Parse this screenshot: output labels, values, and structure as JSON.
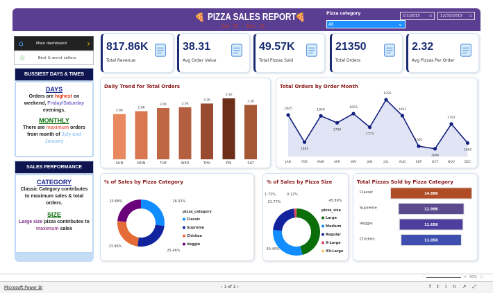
{
  "header": {
    "title": "PIZZA SALES REPORT",
    "subtitle": "Jan 15 - Dec 15",
    "filter_label": "Pizza category",
    "filter_value": "All",
    "date_from": "1/1/2015",
    "date_to": "12/31/2015"
  },
  "nav": {
    "main": "Main dashboard",
    "best": "Best & worst sellers"
  },
  "panel1": {
    "title": "BUSSIEST DAYS & TIMES",
    "days_h": "DAYS",
    "days_1": "Orders are ",
    "days_hl": "highest",
    "days_2": " on weekend, ",
    "days_hl2": "Friday/Saturday",
    "days_3": " evenings.",
    "month_h": "MONTHLY",
    "month_1": "There are ",
    "month_hl": "maximum",
    "month_2": " orders from month of ",
    "month_hl2": "July and January"
  },
  "panel2": {
    "title": "SALES PERFORMANCE",
    "cat_h": "CATEGORY",
    "cat_t": "Classic Category contributes to maximum sales & total orders.",
    "size_h": "SIZE",
    "size_hl": "Large size",
    "size_1": " pizza contributes to ",
    "size_hl2": "maximum",
    "size_2": " sales"
  },
  "kpis": [
    {
      "value": "817.86K",
      "label": "Total Revenue",
      "icon": "money-icon"
    },
    {
      "value": "38.31",
      "label": "Avg Order Value",
      "icon": "clipboard-icon"
    },
    {
      "value": "49.57K",
      "label": "Total Pizzas Sold",
      "icon": "delivery-icon"
    },
    {
      "value": "21350",
      "label": "Total Orders",
      "icon": "order-list-icon"
    },
    {
      "value": "2.32",
      "label": "Avg Pizzas Per Order",
      "icon": "calculator-icon"
    }
  ],
  "chart_data": [
    {
      "type": "bar",
      "title": "Daily Trend for Total Orders",
      "categories": [
        "SUN",
        "MON",
        "TUE",
        "WED",
        "THU",
        "FRI",
        "SAT"
      ],
      "values": [
        2624,
        2794,
        2973,
        3024,
        3239,
        3538,
        3158
      ],
      "labels": [
        "2.6K",
        "2.8K",
        "3.0K",
        "3.0K",
        "3.2K",
        "3.5K",
        "3.2K"
      ],
      "colors": [
        "#e8895f",
        "#d97850",
        "#bf6643",
        "#b46040",
        "#9a4b2f",
        "#6e2f1a",
        "#a65835"
      ]
    },
    {
      "type": "area",
      "title": "Total Orders by Order Month",
      "categories": [
        "JAN",
        "FEB",
        "MAR",
        "APR",
        "MAI",
        "JUN",
        "JUL",
        "AUG",
        "SEP",
        "OCT",
        "NOV",
        "DEC"
      ],
      "values": [
        1845,
        1685,
        1840,
        1799,
        1853,
        1773,
        1935,
        1841,
        1661,
        1646,
        1792,
        1680
      ],
      "color": "#13207f",
      "fill": "#e1e4f4"
    },
    {
      "type": "pie",
      "title": "% of Sales by Pizza Category",
      "legend_title": "pizza_category",
      "labels": [
        "Classic",
        "Supreme",
        "Chicken",
        "Veggie"
      ],
      "values": [
        26.91,
        25.46,
        23.96,
        23.68
      ],
      "value_labels": [
        "26.91%",
        "25.46%",
        "23.96%",
        "23.68%"
      ],
      "colors": [
        "#118dff",
        "#12239e",
        "#e66c37",
        "#6b007b"
      ]
    },
    {
      "type": "pie",
      "title": "% of Sales by Pizza Size",
      "legend_title": "pizza_size",
      "labels": [
        "Large",
        "Medium",
        "Regular",
        "X-Large",
        "XX-Large"
      ],
      "values": [
        45.89,
        30.49,
        21.77,
        1.72,
        0.12
      ],
      "value_labels": [
        "45.89%",
        "30.49%",
        "21.77%",
        "1.72%",
        "0.12%"
      ],
      "colors": [
        "#0b6e0b",
        "#118dff",
        "#12239e",
        "#e0465e",
        "#f5c26b"
      ]
    },
    {
      "type": "bar",
      "orientation": "horizontal",
      "title": "Total Pizzas Sold by Pizza Category",
      "categories": [
        "Classic",
        "Supreme",
        "Veggie",
        "Chicken"
      ],
      "values": [
        14888,
        11987,
        11649,
        11050
      ],
      "labels": [
        "14.89K",
        "11.99K",
        "11.65K",
        "11.05K"
      ],
      "colors": [
        "#b04d27",
        "#5c4a8f",
        "#4e3f9e",
        "#3f4fb0"
      ]
    }
  ],
  "status": {
    "brand": "Microsoft Power BI",
    "page": "1 of 2",
    "zoom": "90%"
  }
}
